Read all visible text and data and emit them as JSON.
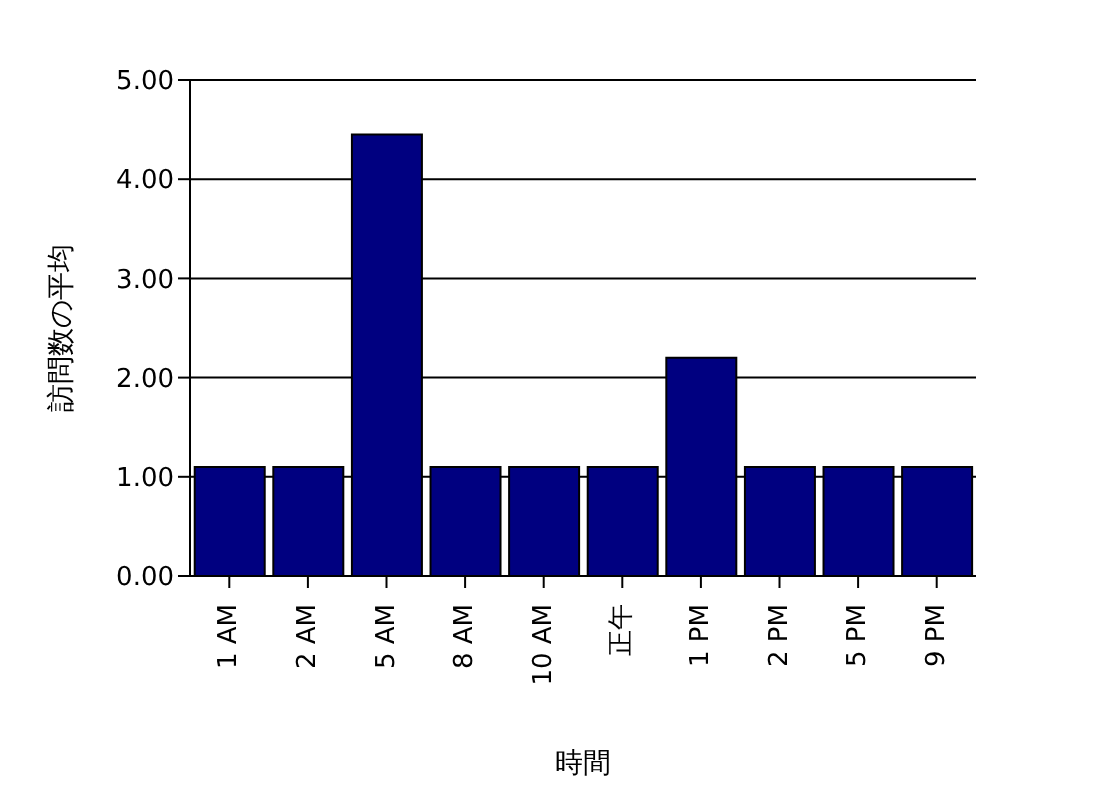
{
  "chart_data": {
    "type": "bar",
    "xlabel": "時間",
    "ylabel": "訪問数の平均",
    "categories": [
      "1 AM",
      "2 AM",
      "5 AM",
      "8 AM",
      "10 AM",
      "正午",
      "1 PM",
      "2 PM",
      "5 PM",
      "9 PM"
    ],
    "values": [
      1.1,
      1.1,
      4.45,
      1.1,
      1.1,
      1.1,
      2.2,
      1.1,
      1.1,
      1.1
    ],
    "color": "#000080",
    "ylim": [
      0,
      5
    ],
    "yticks": [
      {
        "value": 0,
        "label": "0.00"
      },
      {
        "value": 1,
        "label": "1.00"
      },
      {
        "value": 2,
        "label": "2.00"
      },
      {
        "value": 3,
        "label": "3.00"
      },
      {
        "value": 4,
        "label": "4.00"
      },
      {
        "value": 5,
        "label": "5.00"
      }
    ],
    "grid": "y"
  }
}
